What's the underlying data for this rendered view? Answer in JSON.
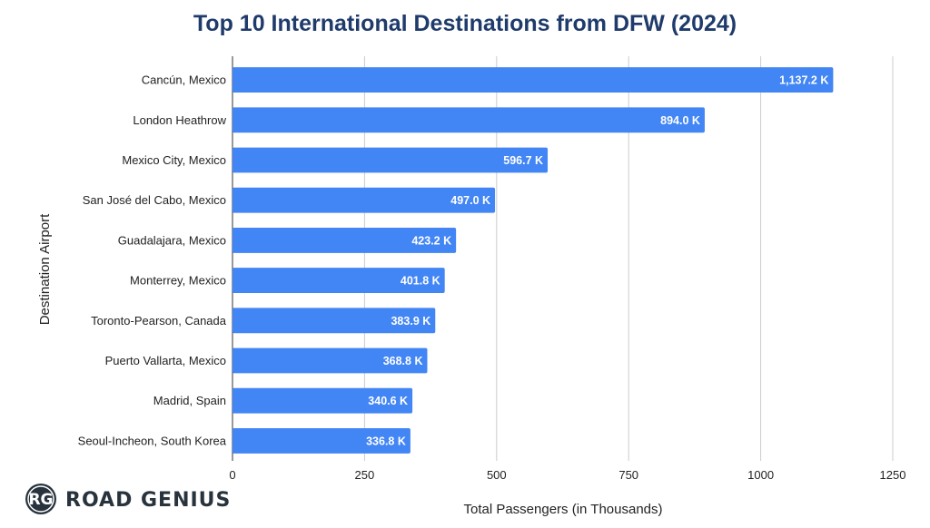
{
  "chart_data": {
    "type": "bar",
    "orientation": "horizontal",
    "title": "Top 10 International Destinations from DFW (2024)",
    "xlabel": "Total Passengers (in Thousands)",
    "ylabel": "Destination Airport",
    "xlim": [
      0,
      1250
    ],
    "xticks": [
      0,
      250,
      500,
      750,
      1000,
      1250
    ],
    "grid": true,
    "bar_color": "#4285f4",
    "categories": [
      "Cancún, Mexico",
      "London Heathrow",
      "Mexico City, Mexico",
      "San José del Cabo, Mexico",
      "Guadalajara, Mexico",
      "Monterrey, Mexico",
      "Toronto-Pearson, Canada",
      "Puerto Vallarta, Mexico",
      "Madrid, Spain",
      "Seoul-Incheon, South Korea"
    ],
    "values": [
      1137.2,
      894.0,
      596.7,
      497.0,
      423.2,
      401.8,
      383.9,
      368.8,
      340.6,
      336.8
    ],
    "data_labels": [
      "1,137.2 K",
      "894.0 K",
      "596.7 K",
      "497.0 K",
      "423.2 K",
      "401.8 K",
      "383.9 K",
      "368.8 K",
      "340.6 K",
      "336.8 K"
    ]
  },
  "branding": {
    "monogram": "RG",
    "name": "ROAD GENIUS",
    "badge_color": "#28333d"
  }
}
